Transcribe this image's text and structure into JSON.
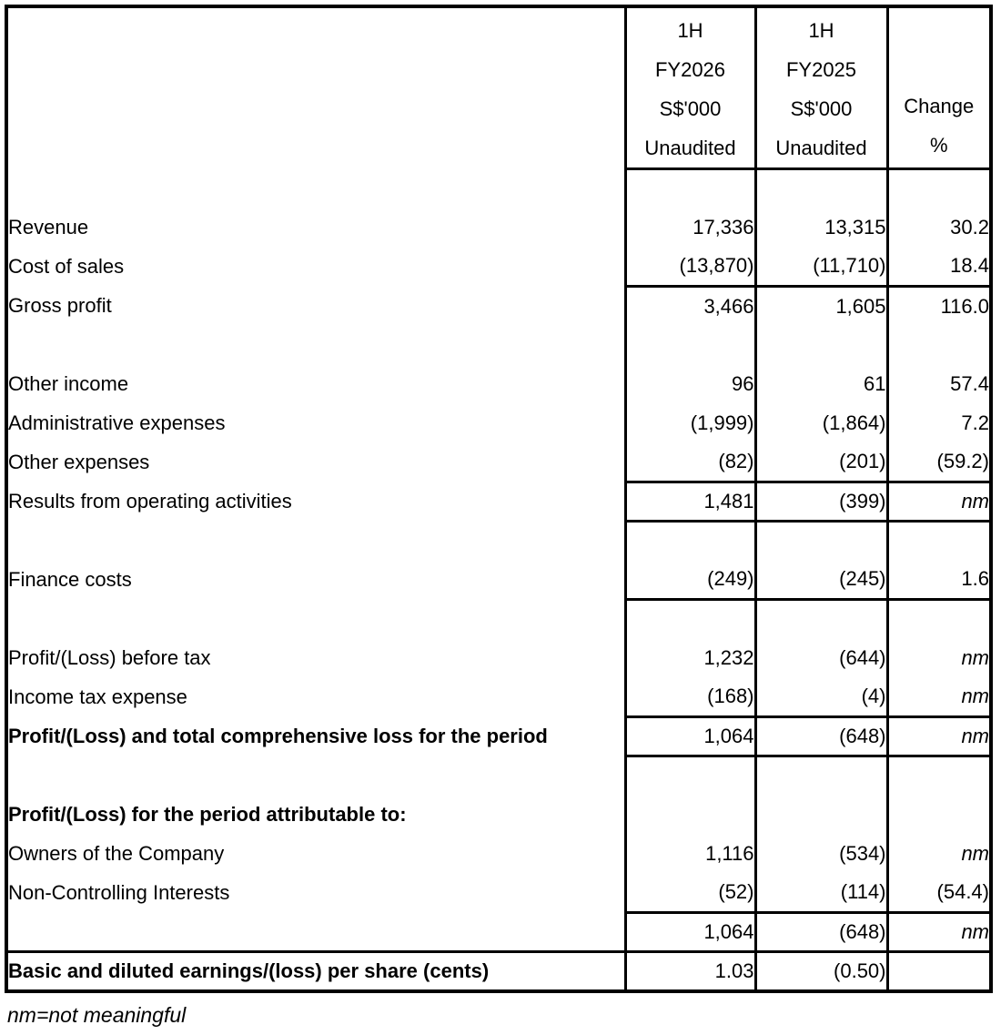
{
  "table": {
    "columns": {
      "label": "",
      "fy2026": [
        "1H",
        "FY2026",
        "S$'000",
        "Unaudited"
      ],
      "fy2025": [
        "1H",
        "FY2025",
        "S$'000",
        "Unaudited"
      ],
      "change": [
        "Change",
        "%"
      ]
    },
    "rows": [
      {
        "label": "",
        "fy2026": "",
        "fy2025": "",
        "change": ""
      },
      {
        "label": "Revenue",
        "fy2026": "17,336",
        "fy2025": "13,315",
        "change": "30.2"
      },
      {
        "label": "Cost of sales",
        "fy2026": "(13,870)",
        "fy2025": "(11,710)",
        "change": "18.4"
      },
      {
        "label": "Gross profit",
        "fy2026": "3,466",
        "fy2025": "1,605",
        "change": "116.0",
        "border_top": "num"
      },
      {
        "label": "",
        "fy2026": "",
        "fy2025": "",
        "change": ""
      },
      {
        "label": "Other income",
        "fy2026": "96",
        "fy2025": "61",
        "change": "57.4"
      },
      {
        "label": "Administrative expenses",
        "fy2026": "(1,999)",
        "fy2025": "(1,864)",
        "change": "7.2"
      },
      {
        "label": "Other expenses",
        "fy2026": "(82)",
        "fy2025": "(201)",
        "change": "(59.2)"
      },
      {
        "label": "Results from operating activities",
        "fy2026": "1,481",
        "fy2025": "(399)",
        "change": "nm",
        "border_top": "num"
      },
      {
        "label": "",
        "fy2026": "",
        "fy2025": "",
        "change": "",
        "border_top": "num"
      },
      {
        "label": "Finance costs",
        "fy2026": "(249)",
        "fy2025": "(245)",
        "change": "1.6"
      },
      {
        "label": "",
        "fy2026": "",
        "fy2025": "",
        "change": "",
        "border_top": "num"
      },
      {
        "label": "Profit/(Loss) before tax",
        "fy2026": "1,232",
        "fy2025": "(644)",
        "change": "nm"
      },
      {
        "label": "Income tax expense",
        "fy2026": "(168)",
        "fy2025": "(4)",
        "change": "nm"
      },
      {
        "label": "Profit/(Loss) and total comprehensive loss for the period",
        "bold": true,
        "fy2026": "1,064",
        "fy2025": "(648)",
        "change": "nm",
        "border_top": "num"
      },
      {
        "label": "",
        "fy2026": "",
        "fy2025": "",
        "change": "",
        "border_top": "num"
      },
      {
        "label": "Profit/(Loss) for the period attributable to:",
        "bold": true,
        "fy2026": "",
        "fy2025": "",
        "change": ""
      },
      {
        "label": "Owners of the Company",
        "fy2026": "1,116",
        "fy2025": "(534)",
        "change": "nm"
      },
      {
        "label": "Non-Controlling Interests",
        "fy2026": "(52)",
        "fy2025": "(114)",
        "change": "(54.4)"
      },
      {
        "label": "",
        "fy2026": "1,064",
        "fy2025": "(648)",
        "change": "nm",
        "border_top": "num"
      },
      {
        "label": "Basic and diluted earnings/(loss) per share (cents)",
        "bold": true,
        "fy2026": "1.03",
        "fy2025": "(0.50)",
        "change": "",
        "border_top": "full"
      }
    ]
  },
  "footnote": "nm=not meaningful"
}
